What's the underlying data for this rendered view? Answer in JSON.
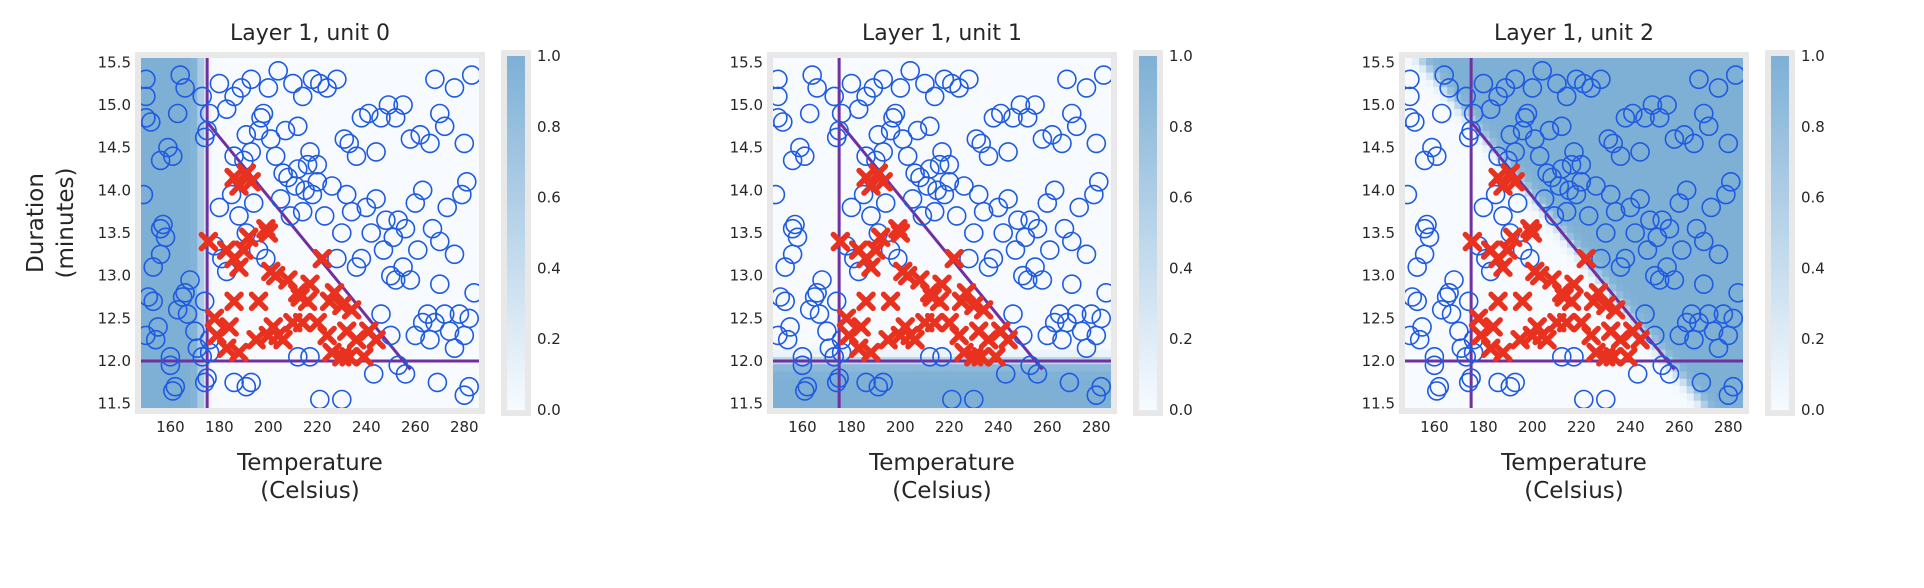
{
  "chart_data": [
    {
      "type": "scatter",
      "title": "Layer 1, unit 0",
      "xlabel": [
        "Temperature",
        "(Celsius)"
      ],
      "ylabel": [
        "Duration",
        "(minutes)"
      ],
      "xlim": [
        148,
        286
      ],
      "ylim": [
        11.45,
        15.55
      ],
      "xticks": [
        160,
        180,
        200,
        220,
        240,
        260,
        280
      ],
      "yticks": [
        11.5,
        12.0,
        12.5,
        13.0,
        13.5,
        14.0,
        14.5,
        15.0,
        15.5
      ],
      "background": "activation of unit 0 (high where Temperature < 175)",
      "colorbar": {
        "range": [
          0,
          1
        ],
        "ticks": [
          0.0,
          0.2,
          0.4,
          0.6,
          0.8,
          1.0
        ]
      },
      "grid": false
    },
    {
      "type": "scatter",
      "title": "Layer 1, unit 1",
      "xlabel": [
        "Temperature",
        "(Celsius)"
      ],
      "ylabel": [],
      "xlim": [
        148,
        286
      ],
      "ylim": [
        11.45,
        15.55
      ],
      "xticks": [
        160,
        180,
        200,
        220,
        240,
        260,
        280
      ],
      "yticks": [
        11.5,
        12.0,
        12.5,
        13.0,
        13.5,
        14.0,
        14.5,
        15.0,
        15.5
      ],
      "background": "activation of unit 1 (high where Duration < 12)",
      "colorbar": {
        "range": [
          0,
          1
        ],
        "ticks": [
          0.0,
          0.2,
          0.4,
          0.6,
          0.8,
          1.0
        ]
      },
      "grid": false
    },
    {
      "type": "scatter",
      "title": "Layer 1, unit 2",
      "xlabel": [
        "Temperature",
        "(Celsius)"
      ],
      "ylabel": [],
      "xlim": [
        148,
        286
      ],
      "ylim": [
        11.45,
        15.55
      ],
      "xticks": [
        160,
        180,
        200,
        220,
        240,
        260,
        280
      ],
      "yticks": [
        11.5,
        12.0,
        12.5,
        13.0,
        13.5,
        14.0,
        14.5,
        15.0,
        15.5
      ],
      "background": "activation of unit 2 (high above the diagonal line)",
      "colorbar": {
        "range": [
          0,
          1
        ],
        "ticks": [
          0.0,
          0.2,
          0.4,
          0.6,
          0.8,
          1.0
        ]
      },
      "grid": false
    }
  ],
  "shared": {
    "lines": {
      "vertical_x": 175,
      "horizontal_y": 12.0,
      "diagonal": [
        [
          175,
          14.8
        ],
        [
          258,
          11.9
        ]
      ],
      "color": "#7030a0"
    },
    "colors": {
      "heat": "#7eb0d5",
      "heat_low": "#f7fbff",
      "circle": "#1f5be0",
      "cross": "#e8321f",
      "frame": "#e8e8e8"
    },
    "positive_points": [
      [
        175.5,
        13.4
      ],
      [
        186,
        12.7
      ],
      [
        184,
        12.4
      ],
      [
        178,
        12.5
      ],
      [
        179,
        12.3
      ],
      [
        183,
        12.15
      ],
      [
        188,
        12.1
      ],
      [
        183,
        13.3
      ],
      [
        190,
        13.3
      ],
      [
        192,
        13.45
      ],
      [
        186,
        13.2
      ],
      [
        188,
        13.1
      ],
      [
        195,
        12.25
      ],
      [
        200,
        12.3
      ],
      [
        204,
        12.3
      ],
      [
        206,
        12.25
      ],
      [
        208,
        12.95
      ],
      [
        203,
        13.0
      ],
      [
        201,
        13.05
      ],
      [
        200,
        13.5
      ],
      [
        199,
        13.55
      ],
      [
        186,
        14.15
      ],
      [
        188,
        14.05
      ],
      [
        191,
        14.2
      ],
      [
        193,
        14.1
      ],
      [
        196,
        12.7
      ],
      [
        202,
        12.4
      ],
      [
        210,
        12.45
      ],
      [
        212,
        12.8
      ],
      [
        213,
        12.75
      ],
      [
        216,
        12.7
      ],
      [
        217,
        12.9
      ],
      [
        214,
        12.45
      ],
      [
        220,
        12.45
      ],
      [
        222,
        13.2
      ],
      [
        224,
        12.3
      ],
      [
        225,
        12.7
      ],
      [
        227,
        12.8
      ],
      [
        230,
        12.65
      ],
      [
        232,
        12.35
      ],
      [
        234,
        12.6
      ],
      [
        236,
        12.25
      ],
      [
        239,
        12.05
      ],
      [
        241,
        12.35
      ],
      [
        244,
        12.25
      ],
      [
        226,
        12.1
      ],
      [
        230,
        12.05
      ],
      [
        233,
        12.05
      ]
    ],
    "negative_points": [
      [
        150,
        15.1
      ],
      [
        150,
        14.85
      ],
      [
        152,
        14.8
      ],
      [
        149,
        13.95
      ],
      [
        150,
        12.3
      ],
      [
        151,
        12.75
      ],
      [
        153,
        12.7
      ],
      [
        154,
        12.25
      ],
      [
        155,
        12.4
      ],
      [
        153,
        13.1
      ],
      [
        156,
        13.25
      ],
      [
        157,
        13.6
      ],
      [
        158,
        13.45
      ],
      [
        160,
        12.05
      ],
      [
        160,
        11.95
      ],
      [
        161,
        11.65
      ],
      [
        162,
        11.7
      ],
      [
        163,
        12.6
      ],
      [
        165,
        12.75
      ],
      [
        166,
        12.8
      ],
      [
        167,
        12.55
      ],
      [
        168,
        12.95
      ],
      [
        170,
        12.35
      ],
      [
        171,
        12.15
      ],
      [
        173,
        12.05
      ],
      [
        174,
        11.75
      ],
      [
        174,
        12.7
      ],
      [
        174,
        14.62
      ],
      [
        175,
        14.7
      ],
      [
        156,
        13.55
      ],
      [
        159,
        14.5
      ],
      [
        161,
        14.4
      ],
      [
        163,
        14.9
      ],
      [
        164,
        15.35
      ],
      [
        156,
        14.35
      ],
      [
        150,
        15.3
      ],
      [
        180,
        15.25
      ],
      [
        186,
        15.1
      ],
      [
        183,
        14.95
      ],
      [
        189,
        15.2
      ],
      [
        193,
        15.3
      ],
      [
        198,
        14.9
      ],
      [
        200,
        15.2
      ],
      [
        204,
        15.4
      ],
      [
        207,
        14.7
      ],
      [
        210,
        15.25
      ],
      [
        212,
        14.75
      ],
      [
        214,
        15.1
      ],
      [
        216,
        14.3
      ],
      [
        218,
        15.3
      ],
      [
        221,
        15.25
      ],
      [
        224,
        15.2
      ],
      [
        228,
        15.3
      ],
      [
        231,
        14.6
      ],
      [
        233,
        14.55
      ],
      [
        236,
        14.4
      ],
      [
        238,
        14.85
      ],
      [
        241,
        14.9
      ],
      [
        244,
        14.45
      ],
      [
        246,
        14.85
      ],
      [
        249,
        15.0
      ],
      [
        252,
        14.85
      ],
      [
        255,
        15.0
      ],
      [
        258,
        14.6
      ],
      [
        262,
        14.65
      ],
      [
        266,
        14.55
      ],
      [
        268,
        15.3
      ],
      [
        270,
        14.9
      ],
      [
        272,
        14.75
      ],
      [
        276,
        15.2
      ],
      [
        280,
        14.55
      ],
      [
        283,
        15.35
      ],
      [
        247,
        13.3
      ],
      [
        250,
        13.0
      ],
      [
        252,
        12.95
      ],
      [
        255,
        13.1
      ],
      [
        258,
        12.95
      ],
      [
        261,
        13.3
      ],
      [
        265,
        12.55
      ],
      [
        268,
        12.45
      ],
      [
        270,
        12.9
      ],
      [
        272,
        12.55
      ],
      [
        274,
        12.35
      ],
      [
        276,
        12.15
      ],
      [
        278,
        12.55
      ],
      [
        280,
        12.3
      ],
      [
        282,
        12.5
      ],
      [
        284,
        12.8
      ],
      [
        280,
        11.6
      ],
      [
        282,
        11.7
      ],
      [
        243,
        11.85
      ],
      [
        246,
        12.55
      ],
      [
        250,
        12.3
      ],
      [
        253,
        11.95
      ],
      [
        256,
        11.85
      ],
      [
        260,
        12.3
      ],
      [
        263,
        12.45
      ],
      [
        266,
        12.25
      ],
      [
        269,
        11.75
      ],
      [
        230,
        11.55
      ],
      [
        238,
        13.2
      ],
      [
        240,
        13.8
      ],
      [
        242,
        13.5
      ],
      [
        244,
        13.9
      ],
      [
        248,
        13.65
      ],
      [
        251,
        13.45
      ],
      [
        253,
        13.65
      ],
      [
        256,
        13.55
      ],
      [
        260,
        13.85
      ],
      [
        263,
        14.0
      ],
      [
        267,
        13.55
      ],
      [
        270,
        13.4
      ],
      [
        273,
        13.8
      ],
      [
        276,
        13.25
      ],
      [
        279,
        13.95
      ],
      [
        281,
        14.1
      ],
      [
        228,
        13.2
      ],
      [
        230,
        13.5
      ],
      [
        232,
        13.95
      ],
      [
        234,
        13.75
      ],
      [
        236,
        13.1
      ],
      [
        223,
        13.7
      ],
      [
        226,
        14.05
      ],
      [
        220,
        14.3
      ],
      [
        217,
        14.45
      ],
      [
        214,
        13.75
      ],
      [
        211,
        14.05
      ],
      [
        208,
        14.15
      ],
      [
        206,
        14.2
      ],
      [
        205,
        13.9
      ],
      [
        209,
        13.7
      ],
      [
        212,
        14.25
      ],
      [
        215,
        14.0
      ],
      [
        218,
        13.95
      ],
      [
        220,
        14.1
      ],
      [
        203,
        14.4
      ],
      [
        201,
        14.6
      ],
      [
        197,
        14.85
      ],
      [
        196,
        14.7
      ],
      [
        193,
        14.45
      ],
      [
        191,
        14.65
      ],
      [
        190,
        14.35
      ],
      [
        186,
        14.4
      ],
      [
        176,
        12.25
      ],
      [
        176,
        12.1
      ],
      [
        175,
        11.8
      ],
      [
        178,
        13.35
      ],
      [
        181,
        13.2
      ],
      [
        183,
        13.05
      ],
      [
        180,
        13.8
      ],
      [
        185,
        13.95
      ],
      [
        188,
        13.7
      ],
      [
        191,
        13.5
      ],
      [
        194,
        13.85
      ],
      [
        196,
        13.3
      ],
      [
        199,
        13.2
      ],
      [
        186,
        11.75
      ],
      [
        191,
        11.7
      ],
      [
        193,
        11.75
      ],
      [
        166,
        15.2
      ],
      [
        173,
        15.1
      ],
      [
        176,
        14.9
      ],
      [
        212,
        12.05
      ],
      [
        217,
        12.05
      ],
      [
        221,
        11.55
      ]
    ]
  }
}
